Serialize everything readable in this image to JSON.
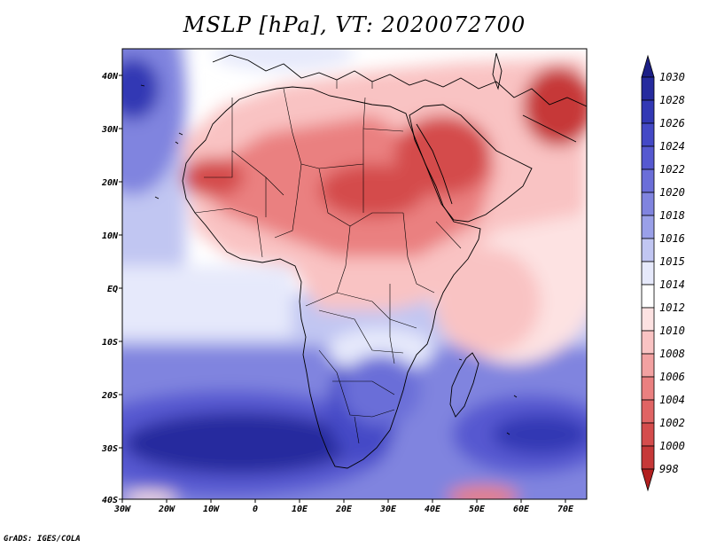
{
  "title": "MSLP [hPa], VT: 2020072700",
  "footer": "GrADS: IGES/COLA",
  "axes": {
    "x_ticks": [
      "30W",
      "20W",
      "10W",
      "0",
      "10E",
      "20E",
      "30E",
      "40E",
      "50E",
      "60E",
      "70E"
    ],
    "y_ticks": [
      "40N",
      "30N",
      "20N",
      "10N",
      "EQ",
      "10S",
      "20S",
      "30S",
      "40S"
    ]
  },
  "colorbar": {
    "labels": [
      "1030",
      "1028",
      "1026",
      "1024",
      "1022",
      "1020",
      "1018",
      "1016",
      "1015",
      "1014",
      "1012",
      "1010",
      "1008",
      "1006",
      "1004",
      "1002",
      "1000",
      "998"
    ],
    "colors": [
      "#262b9e",
      "#3238b4",
      "#4449c6",
      "#5659d0",
      "#6b6ed8",
      "#8084df",
      "#9aa0e8",
      "#c1c6f2",
      "#e6e9fb",
      "#ffffff",
      "#fde2e2",
      "#f9c3c3",
      "#f2a1a1",
      "#ea8080",
      "#e06464",
      "#d44c4c",
      "#c63838",
      "#b92828"
    ],
    "top_arrow_color": "#1c1f86",
    "bottom_arrow_color": "#b21f1f"
  },
  "map_colors": {
    "ocean_high": "#2a2ea8",
    "ocean_mid": "#6b6ed8",
    "ocean_low": "#c1c6f2",
    "neutral": "#ffffff",
    "land_low": "#f9c3c3",
    "land_mid": "#ea8080",
    "land_deep": "#d44c4c",
    "coast": "#000000"
  }
}
